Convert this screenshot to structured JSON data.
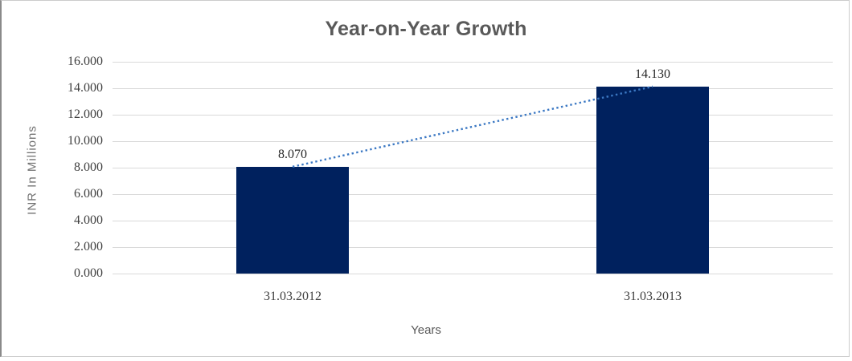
{
  "chart_data": {
    "type": "bar",
    "title": "Year-on-Year Growth",
    "xlabel": "Years",
    "ylabel": "INR In Millions",
    "categories": [
      "31.03.2012",
      "31.03.2013"
    ],
    "values": [
      8.07,
      14.13
    ],
    "data_labels": [
      "8.070",
      "14.130"
    ],
    "ylim": [
      0,
      16
    ],
    "ytick_step": 2,
    "ytick_labels": [
      "0.000",
      "2.000",
      "4.000",
      "6.000",
      "8.000",
      "10.000",
      "12.000",
      "14.000",
      "16.000"
    ],
    "grid": true,
    "legend": "none",
    "bar_color": "#00215e",
    "gridline_color": "#d9d9d9",
    "trendline": {
      "style": "dotted",
      "color": "#3b78c3"
    }
  }
}
